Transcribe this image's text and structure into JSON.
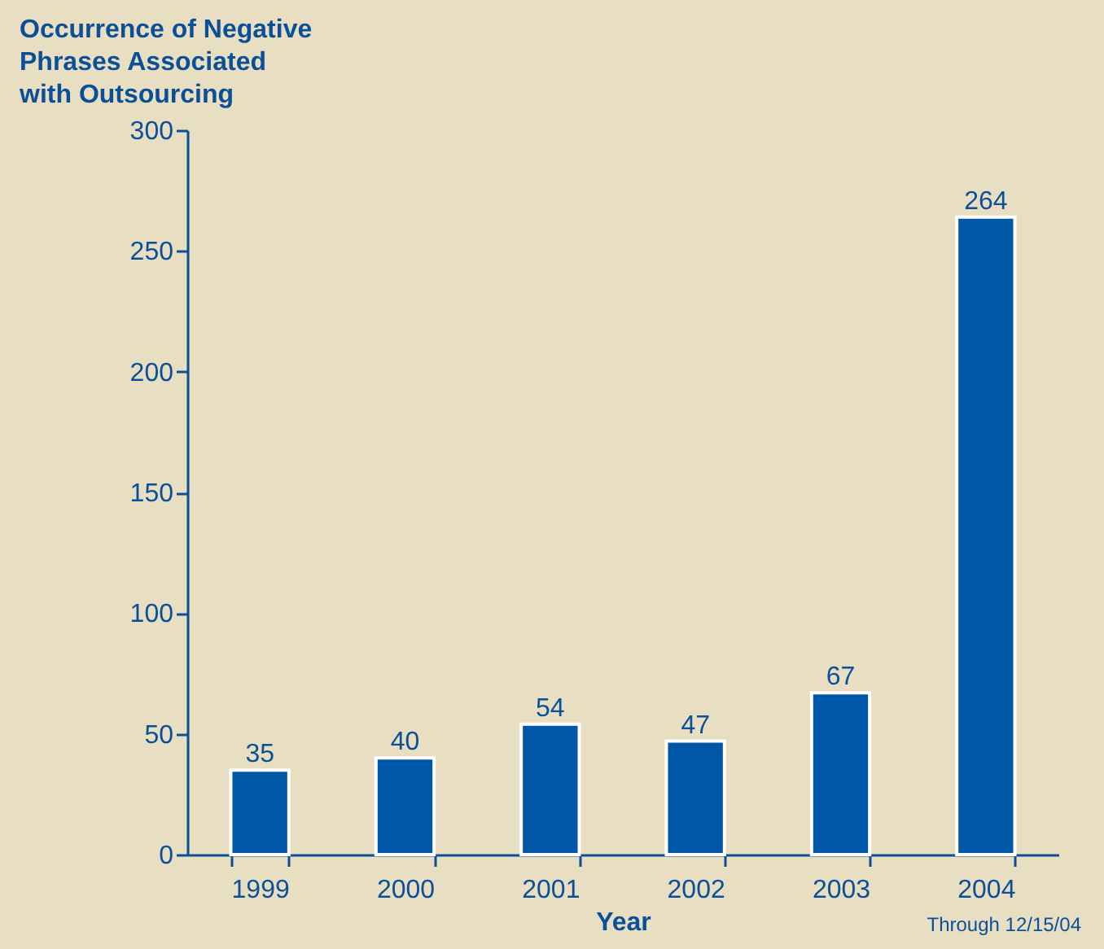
{
  "chart_data": {
    "type": "bar",
    "title": "Occurrence of Negative\nPhrases Associated\nwith Outsourcing",
    "xlabel": "Year",
    "categories": [
      "1999",
      "2000",
      "2001",
      "2002",
      "2003",
      "2004"
    ],
    "values": [
      35,
      40,
      54,
      47,
      67,
      264
    ],
    "color": "#0057a8",
    "ylim": [
      0,
      300
    ],
    "yticks": [
      0,
      50,
      100,
      150,
      200,
      250,
      300
    ],
    "grid": false,
    "data_labels": true,
    "annotations": [
      "Through 12/15/04"
    ]
  }
}
